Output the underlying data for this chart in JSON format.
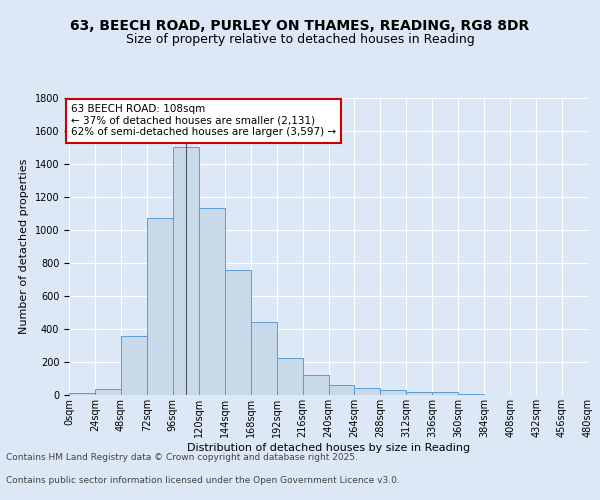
{
  "title_line1": "63, BEECH ROAD, PURLEY ON THAMES, READING, RG8 8DR",
  "title_line2": "Size of property relative to detached houses in Reading",
  "xlabel": "Distribution of detached houses by size in Reading",
  "ylabel": "Number of detached properties",
  "bin_edges": [
    0,
    24,
    48,
    72,
    96,
    120,
    144,
    168,
    192,
    216,
    240,
    264,
    288,
    312,
    336,
    360,
    384,
    408,
    432,
    456,
    480
  ],
  "bar_heights": [
    10,
    35,
    360,
    1070,
    1500,
    1130,
    755,
    440,
    225,
    120,
    60,
    45,
    30,
    20,
    20,
    5,
    3,
    2,
    1,
    1
  ],
  "bar_color": "#c8daea",
  "bar_edge_color": "#5b9bd5",
  "subject_size": 108,
  "subject_label": "63 BEECH ROAD: 108sqm",
  "pct_smaller": 37,
  "n_smaller": 2131,
  "pct_larger_semi": 62,
  "n_larger_semi": 3597,
  "annotation_box_color": "#ffffff",
  "annotation_box_edge": "#cc0000",
  "ylim": [
    0,
    1800
  ],
  "background_color": "#dce8f5",
  "plot_bg_color": "#dce8f5",
  "footer_line1": "Contains HM Land Registry data © Crown copyright and database right 2025.",
  "footer_line2": "Contains public sector information licensed under the Open Government Licence v3.0.",
  "grid_color": "#ffffff",
  "title_fontsize": 10,
  "subtitle_fontsize": 9,
  "axis_label_fontsize": 8,
  "tick_fontsize": 7,
  "annotation_fontsize": 7.5,
  "footer_fontsize": 6.5
}
